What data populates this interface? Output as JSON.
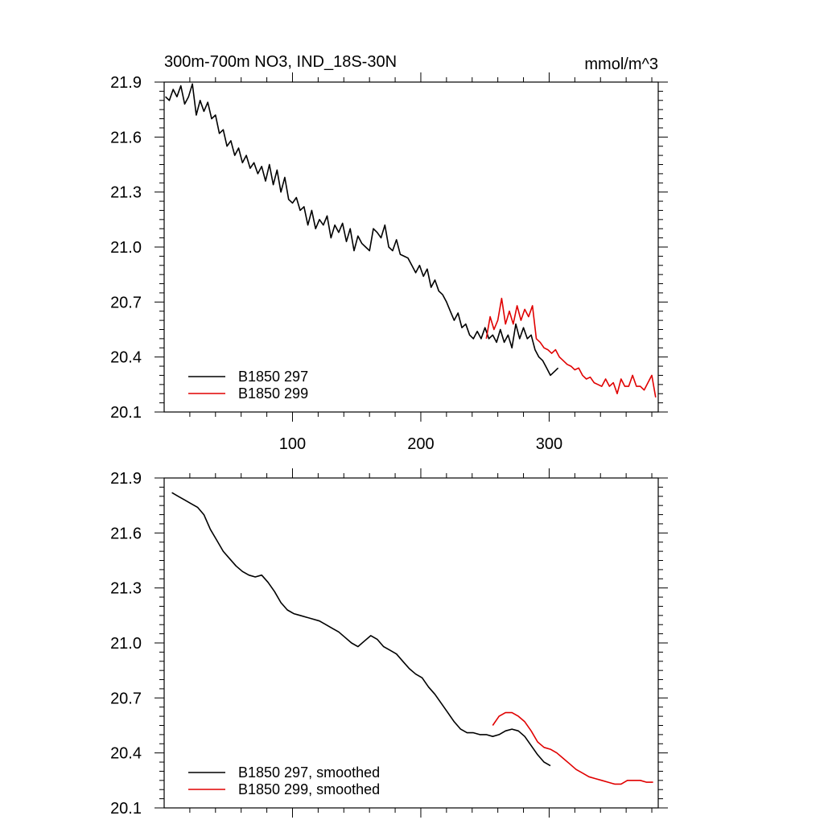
{
  "chart_data": [
    {
      "type": "line",
      "title": "300m-700m NO3, IND_18S-30N",
      "units": "mmol/m^3",
      "xlim": [
        0,
        385
      ],
      "ylim": [
        20.1,
        21.9
      ],
      "xticks": [
        100,
        200,
        300
      ],
      "xticklabels": [
        "100",
        "200",
        "300"
      ],
      "yticks": [
        20.1,
        20.4,
        20.7,
        21.0,
        21.3,
        21.6,
        21.9
      ],
      "yticklabels": [
        "20.1",
        "20.4",
        "20.7",
        "21.0",
        "21.3",
        "21.6",
        "21.9"
      ],
      "legend_position": "bottom-left",
      "series": [
        {
          "name": "B1850 297",
          "color": "#000000",
          "x": [
            1,
            4,
            7,
            10,
            13,
            16,
            19,
            22,
            25,
            28,
            31,
            34,
            37,
            40,
            43,
            46,
            49,
            52,
            55,
            58,
            61,
            64,
            67,
            70,
            73,
            76,
            79,
            82,
            85,
            88,
            91,
            94,
            97,
            100,
            103,
            106,
            109,
            112,
            115,
            118,
            121,
            124,
            127,
            130,
            133,
            136,
            139,
            142,
            145,
            148,
            151,
            154,
            157,
            160,
            163,
            166,
            169,
            172,
            175,
            178,
            181,
            184,
            187,
            190,
            193,
            196,
            199,
            202,
            205,
            208,
            211,
            214,
            217,
            220,
            223,
            226,
            229,
            232,
            235,
            238,
            241,
            244,
            247,
            250,
            253,
            256,
            259,
            262,
            265,
            268,
            271,
            274,
            277,
            280,
            283,
            286,
            289,
            292,
            295,
            298,
            301,
            304,
            307
          ],
          "values": [
            21.82,
            21.8,
            21.86,
            21.82,
            21.88,
            21.78,
            21.82,
            21.89,
            21.72,
            21.8,
            21.74,
            21.79,
            21.7,
            21.72,
            21.62,
            21.64,
            21.55,
            21.58,
            21.5,
            21.54,
            21.46,
            21.5,
            21.43,
            21.46,
            21.4,
            21.44,
            21.36,
            21.45,
            21.34,
            21.42,
            21.3,
            21.38,
            21.26,
            21.24,
            21.27,
            21.2,
            21.22,
            21.12,
            21.2,
            21.1,
            21.15,
            21.12,
            21.17,
            21.05,
            21.12,
            21.08,
            21.13,
            21.03,
            21.1,
            20.98,
            21.06,
            21.02,
            21.0,
            20.98,
            21.1,
            21.08,
            21.05,
            21.12,
            21.0,
            20.98,
            21.04,
            20.96,
            20.95,
            20.94,
            20.9,
            20.86,
            20.9,
            20.84,
            20.88,
            20.78,
            20.82,
            20.76,
            20.74,
            20.7,
            20.65,
            20.6,
            20.64,
            20.56,
            20.58,
            20.52,
            20.5,
            20.54,
            20.5,
            20.56,
            20.5,
            20.52,
            20.48,
            20.55,
            20.48,
            20.52,
            20.45,
            20.58,
            20.5,
            20.56,
            20.5,
            20.52,
            20.44,
            20.4,
            20.38,
            20.34,
            20.3,
            20.32,
            20.34
          ]
        },
        {
          "name": "B1850 299",
          "color": "#e00000",
          "x": [
            251,
            254,
            257,
            260,
            263,
            266,
            269,
            272,
            275,
            278,
            281,
            284,
            287,
            290,
            293,
            296,
            299,
            302,
            305,
            308,
            311,
            314,
            317,
            320,
            323,
            326,
            329,
            332,
            335,
            338,
            341,
            344,
            347,
            350,
            353,
            356,
            359,
            362,
            365,
            368,
            371,
            374,
            377,
            380,
            383
          ],
          "values": [
            20.5,
            20.62,
            20.55,
            20.6,
            20.72,
            20.58,
            20.65,
            20.58,
            20.68,
            20.6,
            20.66,
            20.62,
            20.68,
            20.5,
            20.48,
            20.45,
            20.44,
            20.42,
            20.44,
            20.4,
            20.38,
            20.36,
            20.35,
            20.33,
            20.34,
            20.3,
            20.28,
            20.29,
            20.26,
            20.25,
            20.24,
            20.28,
            20.24,
            20.26,
            20.2,
            20.28,
            20.24,
            20.24,
            20.3,
            20.24,
            20.24,
            20.22,
            20.26,
            20.3,
            20.18
          ]
        }
      ]
    },
    {
      "type": "line",
      "xlim": [
        0,
        385
      ],
      "ylim": [
        20.1,
        21.9
      ],
      "yticks": [
        20.1,
        20.4,
        20.7,
        21.0,
        21.3,
        21.6,
        21.9
      ],
      "yticklabels": [
        "20.1",
        "20.4",
        "20.7",
        "21.0",
        "21.3",
        "21.6",
        "21.9"
      ],
      "legend_position": "bottom-left",
      "series": [
        {
          "name": "B1850 297, smoothed",
          "color": "#000000",
          "x": [
            6,
            11,
            16,
            21,
            26,
            31,
            36,
            41,
            46,
            51,
            56,
            61,
            66,
            71,
            76,
            81,
            86,
            91,
            96,
            101,
            106,
            111,
            116,
            121,
            126,
            131,
            136,
            141,
            146,
            151,
            156,
            161,
            166,
            171,
            176,
            181,
            186,
            191,
            196,
            201,
            206,
            211,
            216,
            221,
            226,
            231,
            236,
            241,
            246,
            251,
            256,
            261,
            266,
            271,
            276,
            281,
            286,
            291,
            296,
            301
          ],
          "values": [
            21.82,
            21.8,
            21.78,
            21.76,
            21.74,
            21.7,
            21.62,
            21.56,
            21.5,
            21.46,
            21.42,
            21.39,
            21.37,
            21.36,
            21.37,
            21.33,
            21.28,
            21.22,
            21.18,
            21.16,
            21.15,
            21.14,
            21.13,
            21.12,
            21.1,
            21.08,
            21.06,
            21.03,
            21.0,
            20.98,
            21.01,
            21.04,
            21.02,
            20.98,
            20.96,
            20.94,
            20.9,
            20.86,
            20.83,
            20.81,
            20.76,
            20.72,
            20.67,
            20.62,
            20.57,
            20.53,
            20.51,
            20.51,
            20.5,
            20.5,
            20.49,
            20.5,
            20.52,
            20.53,
            20.52,
            20.49,
            20.44,
            20.39,
            20.35,
            20.33
          ]
        },
        {
          "name": "B1850 299, smoothed",
          "color": "#e00000",
          "x": [
            256,
            261,
            266,
            271,
            276,
            281,
            286,
            291,
            296,
            301,
            306,
            311,
            316,
            321,
            326,
            331,
            336,
            341,
            346,
            351,
            356,
            361,
            366,
            371,
            376,
            381
          ],
          "values": [
            20.55,
            20.6,
            20.62,
            20.62,
            20.6,
            20.57,
            20.52,
            20.46,
            20.43,
            20.42,
            20.4,
            20.37,
            20.34,
            20.31,
            20.29,
            20.27,
            20.26,
            20.25,
            20.24,
            20.23,
            20.23,
            20.25,
            20.25,
            20.25,
            20.24,
            20.24
          ]
        }
      ]
    }
  ]
}
